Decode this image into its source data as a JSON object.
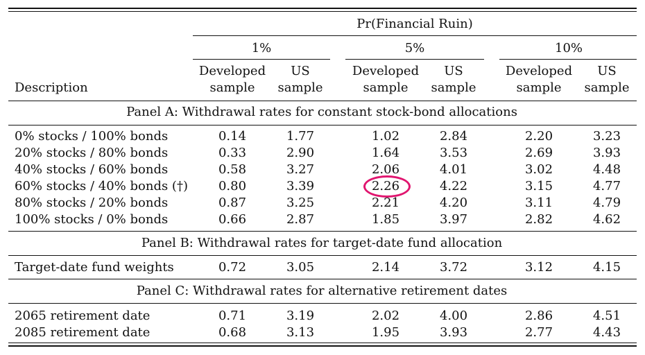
{
  "header": {
    "super_title": "Pr(Financial Ruin)",
    "groups": [
      "1%",
      "5%",
      "10%"
    ],
    "sub_line1": [
      "Developed",
      "US",
      "Developed",
      "US",
      "Developed",
      "US"
    ],
    "sub_line2": [
      "sample",
      "sample",
      "sample",
      "sample",
      "sample",
      "sample"
    ],
    "description": "Description"
  },
  "panels": [
    {
      "title": "Panel A: Withdrawal rates for constant stock-bond allocations",
      "rows": [
        {
          "label": "0% stocks / 100% bonds",
          "values": [
            "0.14",
            "1.77",
            "1.02",
            "2.84",
            "2.20",
            "3.23"
          ]
        },
        {
          "label": "20% stocks / 80% bonds",
          "values": [
            "0.33",
            "2.90",
            "1.64",
            "3.53",
            "2.69",
            "3.93"
          ]
        },
        {
          "label": "40% stocks / 60% bonds",
          "values": [
            "0.58",
            "3.27",
            "2.06",
            "4.01",
            "3.02",
            "4.48"
          ]
        },
        {
          "label": "60% stocks / 40% bonds (†)",
          "values": [
            "0.80",
            "3.39",
            "2.26",
            "4.22",
            "3.15",
            "4.77"
          ]
        },
        {
          "label": "80% stocks / 20% bonds",
          "values": [
            "0.87",
            "3.25",
            "2.21",
            "4.20",
            "3.11",
            "4.79"
          ]
        },
        {
          "label": "100% stocks / 0% bonds",
          "values": [
            "0.66",
            "2.87",
            "1.85",
            "3.97",
            "2.82",
            "4.62"
          ]
        }
      ]
    },
    {
      "title": "Panel B: Withdrawal rates for target-date fund allocation",
      "rows": [
        {
          "label": "Target-date fund weights",
          "values": [
            "0.72",
            "3.05",
            "2.14",
            "3.72",
            "3.12",
            "4.15"
          ]
        }
      ]
    },
    {
      "title": "Panel C: Withdrawal rates for alternative retirement dates",
      "rows": [
        {
          "label": "2065 retirement date",
          "values": [
            "0.71",
            "3.19",
            "2.02",
            "4.00",
            "2.86",
            "4.51"
          ]
        },
        {
          "label": "2085 retirement date",
          "values": [
            "0.68",
            "3.13",
            "1.95",
            "3.93",
            "2.77",
            "4.43"
          ]
        }
      ]
    }
  ],
  "highlight": {
    "panel": 0,
    "row": 3,
    "col": 2,
    "color": "#e0156f"
  }
}
